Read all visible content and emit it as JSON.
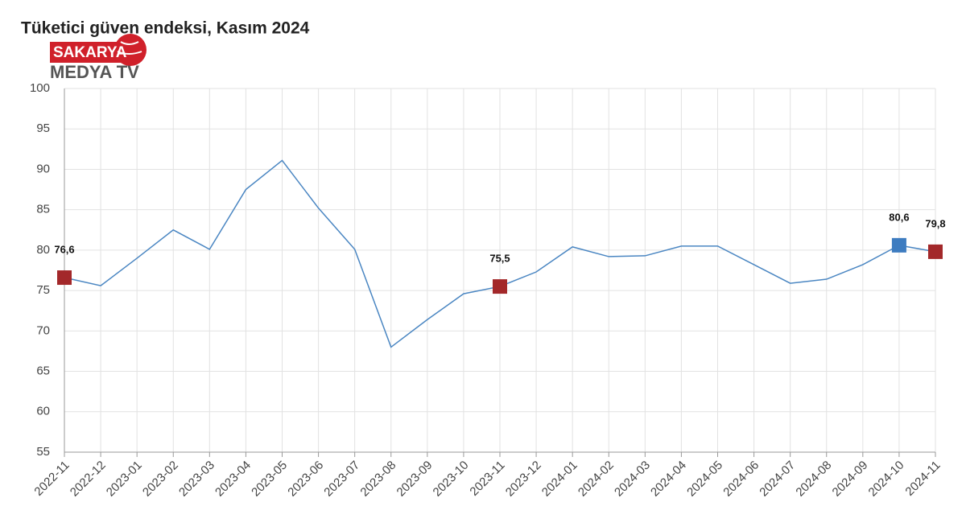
{
  "logo": {
    "line1": "SAKARYA",
    "line2": "MEDYA TV"
  },
  "chart_data": {
    "type": "line",
    "title": "Tüketici güven endeksi, Kasım 2024",
    "categories": [
      "2022-11",
      "2022-12",
      "2023-01",
      "2023-02",
      "2023-03",
      "2023-04",
      "2023-05",
      "2023-06",
      "2023-07",
      "2023-08",
      "2023-09",
      "2023-10",
      "2023-11",
      "2023-12",
      "2024-01",
      "2024-02",
      "2024-03",
      "2024-04",
      "2024-05",
      "2024-06",
      "2024-07",
      "2024-08",
      "2024-09",
      "2024-10",
      "2024-11"
    ],
    "values": [
      76.6,
      75.6,
      79.0,
      82.5,
      80.1,
      87.5,
      91.1,
      85.2,
      80.1,
      68.0,
      71.4,
      74.6,
      75.5,
      77.3,
      80.4,
      79.2,
      79.3,
      80.5,
      80.5,
      78.2,
      75.9,
      76.4,
      78.2,
      80.6,
      79.8
    ],
    "value_labels": [
      "76,6",
      null,
      null,
      null,
      null,
      null,
      null,
      null,
      null,
      null,
      null,
      null,
      "75,5",
      null,
      null,
      null,
      null,
      null,
      null,
      null,
      null,
      null,
      null,
      "80,6",
      "79,8"
    ],
    "marker_colors": [
      "#a3282a",
      null,
      null,
      null,
      null,
      null,
      null,
      null,
      null,
      null,
      null,
      null,
      "#a3282a",
      null,
      null,
      null,
      null,
      null,
      null,
      null,
      null,
      null,
      null,
      "#3d7cc0",
      "#a3282a"
    ],
    "color": "#4a86c2",
    "ylim": [
      55,
      100
    ],
    "yticks": [
      55,
      60,
      65,
      70,
      75,
      80,
      85,
      90,
      95,
      100
    ],
    "grid": true
  }
}
